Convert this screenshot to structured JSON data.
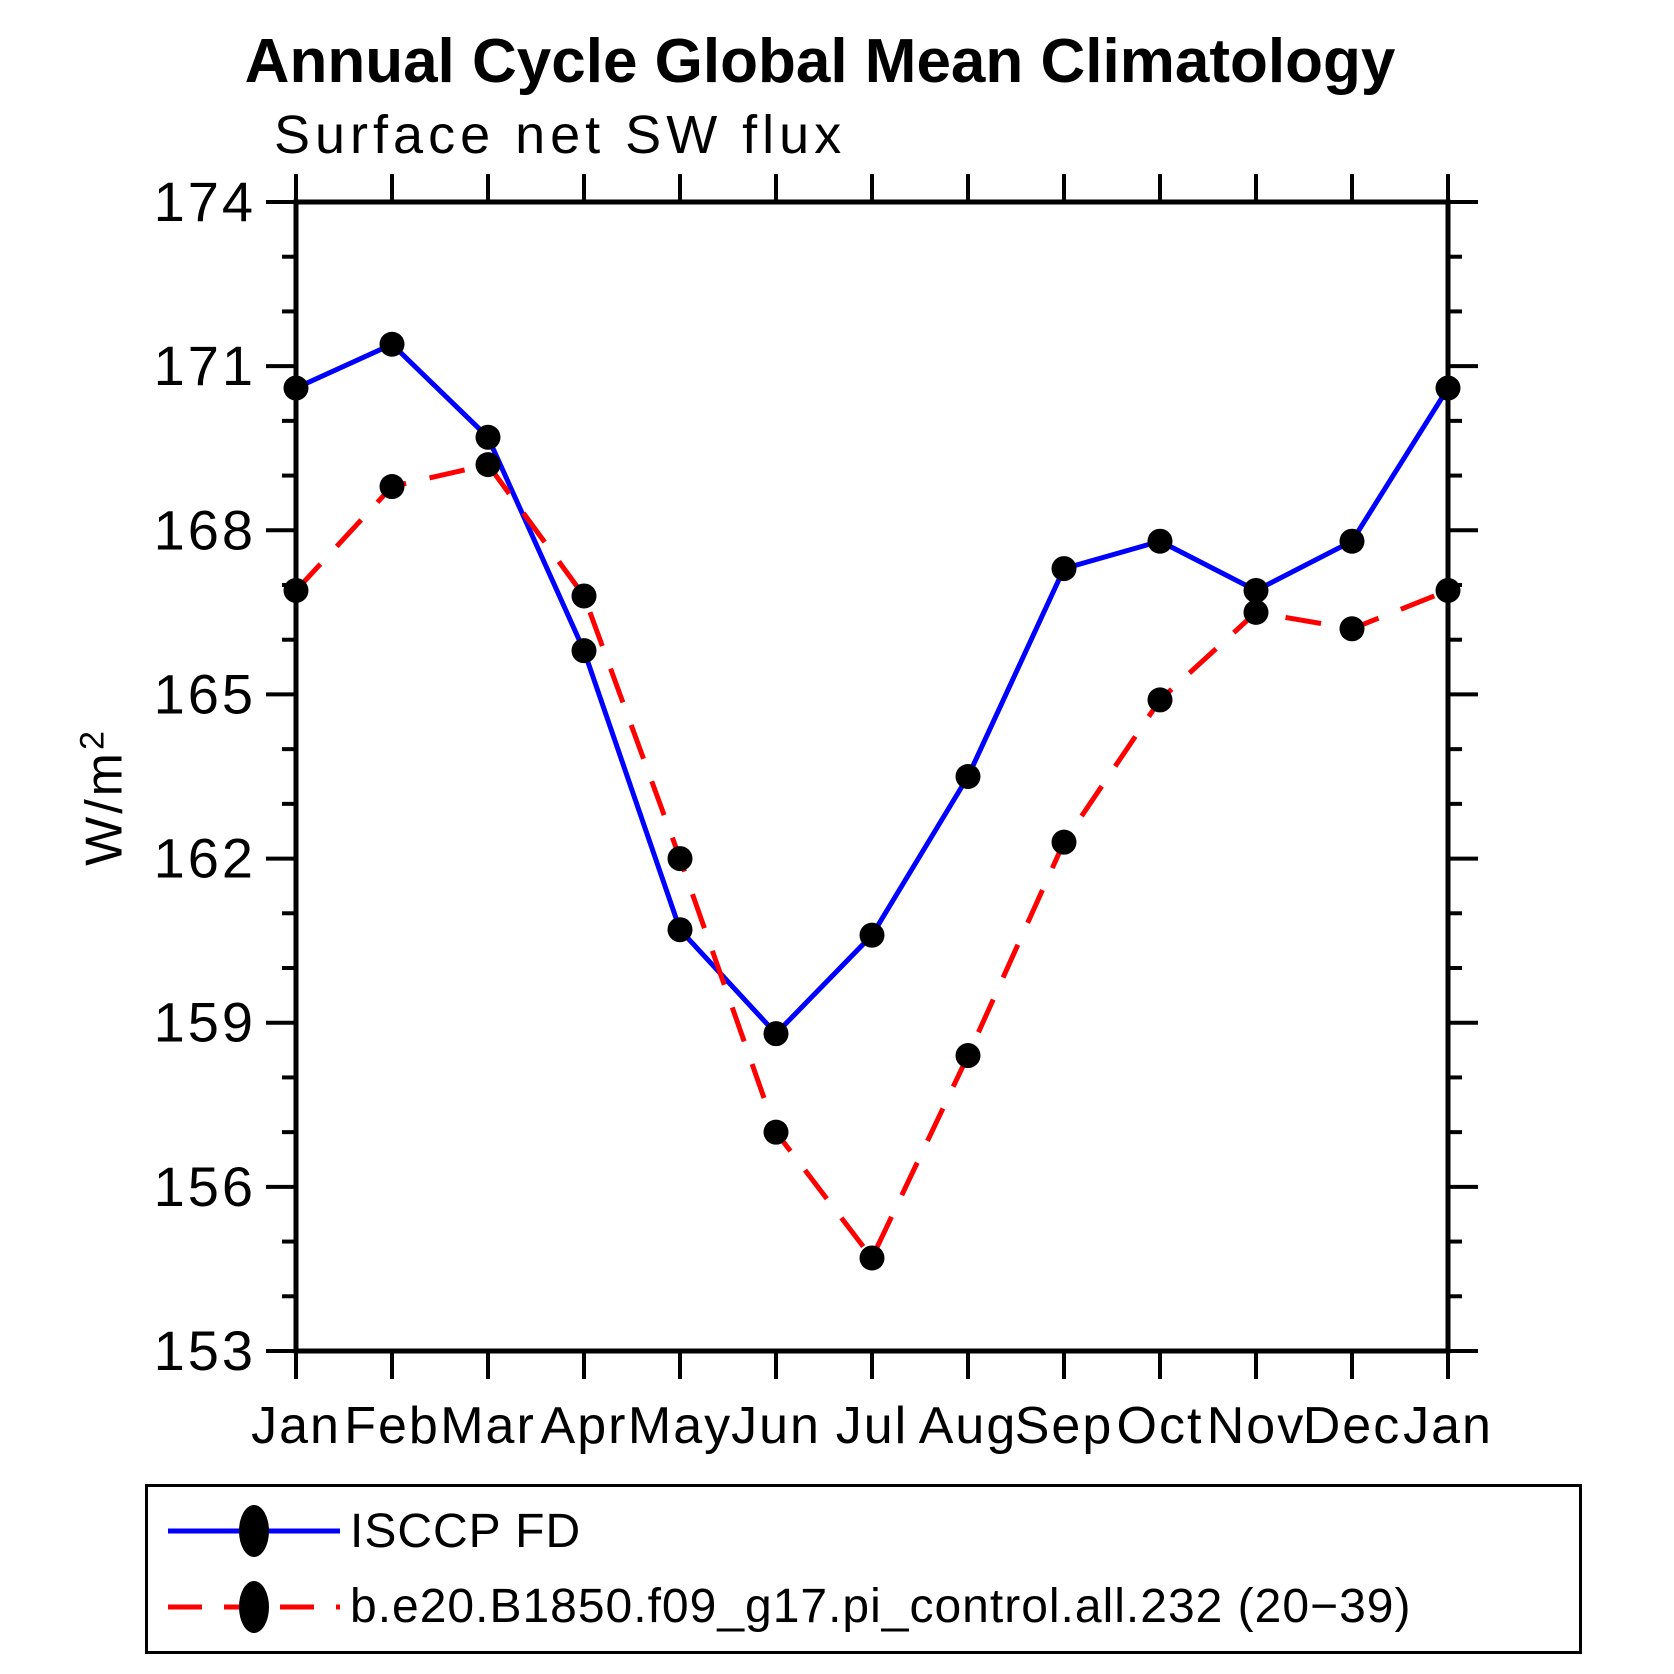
{
  "chart_data": {
    "type": "line",
    "title": "Annual Cycle Global Mean Climatology",
    "subtitle": "Surface net SW flux",
    "ylabel": "W/m",
    "ylabel_sup": "2",
    "xlabel": "",
    "categories": [
      "Jan",
      "Feb",
      "Mar",
      "Apr",
      "May",
      "Jun",
      "Jul",
      "Aug",
      "Sep",
      "Oct",
      "Nov",
      "Dec",
      "Jan"
    ],
    "ylim": [
      153,
      174
    ],
    "ytick_major_step": 3,
    "ytick_minor_step": 1,
    "grid": false,
    "legend_position": "bottom",
    "axis_color": "#000000",
    "marker_color": "#000000",
    "series": [
      {
        "name": "ISCCP FD",
        "color": "#0000ff",
        "style": "solid",
        "marker": "circle",
        "values": [
          170.6,
          171.4,
          169.7,
          165.8,
          160.7,
          158.8,
          160.6,
          163.5,
          167.3,
          167.8,
          166.9,
          167.8,
          170.6
        ]
      },
      {
        "name": "b.e20.B1850.f09_g17.pi_control.all.232 (20−39)",
        "color": "#ff0000",
        "style": "dashed",
        "marker": "circle",
        "values": [
          166.9,
          168.8,
          169.2,
          166.8,
          162.0,
          157.0,
          154.7,
          158.4,
          162.3,
          164.9,
          166.5,
          166.2,
          166.9
        ]
      }
    ]
  }
}
